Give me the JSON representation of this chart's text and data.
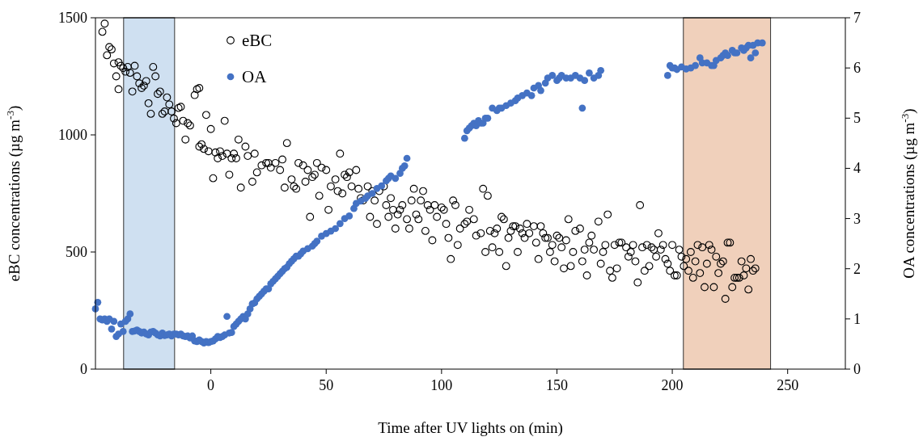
{
  "chart_data": {
    "type": "scatter",
    "xlabel": "Time after UV lights on (min)",
    "ylabel": "eBC concentrations (µg m$^{-3}$)",
    "y2label": "OA concentrations (µg m$^{-3}$)",
    "xlim": [
      -50,
      275
    ],
    "xticks": [
      0,
      50,
      100,
      150,
      200,
      250
    ],
    "ylim": [
      0,
      1500
    ],
    "yticks": [
      0,
      500,
      1000,
      1500
    ],
    "y2lim": [
      0,
      7
    ],
    "y2ticks": [
      0,
      1,
      2,
      3,
      4,
      5,
      6,
      7
    ],
    "marker": "circle",
    "legend": "top left",
    "grid": false,
    "bands": [
      {
        "axis": "x",
        "from": -37.8,
        "to": -15.7,
        "color": "#cfe0f1"
      },
      {
        "axis": "x",
        "from": 204.8,
        "to": 242.6,
        "color": "#f0d0bb"
      }
    ],
    "series": [
      {
        "name": "eBC",
        "color": "#000000",
        "x": [
          -47,
          -46,
          -45,
          -44,
          -43,
          -42,
          -41,
          -40,
          -40,
          -39,
          -38,
          -37,
          -36,
          -35,
          -34,
          -33,
          -32,
          -31,
          -30,
          -29,
          -28,
          -27,
          -26,
          -25,
          -24,
          -23,
          -22,
          -21,
          -20,
          -19,
          -18,
          -17,
          -16,
          -15,
          -14,
          -13,
          -12,
          -11,
          -10,
          -9,
          -7,
          -6,
          -5,
          -5,
          -4,
          -3,
          -2,
          -1,
          0,
          1,
          2,
          3,
          4,
          5,
          6,
          7,
          8,
          9,
          10,
          11,
          12,
          13,
          15,
          16,
          18,
          19,
          20,
          22,
          24,
          25,
          26,
          28,
          30,
          31,
          32,
          33,
          35,
          36,
          37,
          38,
          40,
          41,
          42,
          43,
          44,
          45,
          46,
          47,
          48,
          50,
          51,
          52,
          54,
          55,
          56,
          57,
          58,
          59,
          60,
          61,
          63,
          64,
          65,
          66,
          68,
          69,
          70,
          71,
          72,
          73,
          75,
          76,
          77,
          78,
          79,
          80,
          81,
          82,
          83,
          85,
          86,
          87,
          88,
          89,
          90,
          91,
          92,
          93,
          94,
          95,
          96,
          97,
          98,
          100,
          101,
          102,
          103,
          104,
          105,
          106,
          107,
          108,
          110,
          111,
          112,
          114,
          115,
          117,
          118,
          119,
          120,
          121,
          122,
          123,
          124,
          125,
          126,
          127,
          128,
          129,
          130,
          131,
          132,
          133,
          134,
          135,
          136,
          137,
          138,
          140,
          141,
          142,
          143,
          144,
          145,
          146,
          147,
          148,
          149,
          150,
          151,
          152,
          153,
          154,
          155,
          156,
          157,
          158,
          160,
          161,
          162,
          163,
          164,
          165,
          166,
          168,
          169,
          170,
          171,
          172,
          173,
          174,
          175,
          176,
          177,
          178,
          180,
          181,
          182,
          183,
          184,
          185,
          186,
          187,
          188,
          189,
          190,
          191,
          192,
          193,
          194,
          195,
          196,
          197,
          198,
          199,
          200,
          201,
          202,
          203,
          204,
          205,
          206,
          207,
          208,
          209,
          210,
          211,
          212,
          213,
          214,
          215,
          216,
          217,
          218,
          219,
          220,
          221,
          222,
          223,
          224,
          225,
          226,
          227,
          228,
          229,
          230,
          231,
          232,
          233,
          234,
          235,
          236
        ],
        "values": [
          1440,
          1475,
          1340,
          1375,
          1365,
          1305,
          1250,
          1195,
          1310,
          1295,
          1285,
          1270,
          1290,
          1265,
          1185,
          1295,
          1250,
          1220,
          1200,
          1210,
          1230,
          1135,
          1090,
          1290,
          1250,
          1175,
          1185,
          1090,
          1100,
          1160,
          1130,
          1100,
          1070,
          1050,
          1115,
          1120,
          1060,
          980,
          1050,
          1040,
          1170,
          1195,
          1200,
          950,
          960,
          940,
          1085,
          930,
          1025,
          815,
          925,
          900,
          930,
          910,
          1060,
          920,
          830,
          900,
          920,
          900,
          980,
          775,
          950,
          910,
          800,
          920,
          840,
          870,
          880,
          880,
          860,
          880,
          850,
          895,
          775,
          965,
          810,
          780,
          770,
          880,
          870,
          800,
          850,
          650,
          820,
          830,
          880,
          740,
          860,
          850,
          680,
          780,
          810,
          760,
          920,
          750,
          830,
          820,
          840,
          780,
          850,
          770,
          730,
          720,
          780,
          650,
          760,
          720,
          620,
          760,
          780,
          700,
          650,
          730,
          680,
          600,
          660,
          680,
          700,
          640,
          600,
          720,
          770,
          660,
          640,
          720,
          760,
          590,
          700,
          680,
          550,
          700,
          650,
          690,
          680,
          620,
          560,
          470,
          720,
          700,
          530,
          600,
          620,
          630,
          680,
          640,
          570,
          580,
          770,
          500,
          740,
          590,
          520,
          580,
          600,
          500,
          650,
          640,
          440,
          560,
          590,
          610,
          610,
          500,
          600,
          580,
          560,
          620,
          580,
          610,
          540,
          470,
          610,
          580,
          560,
          560,
          500,
          530,
          460,
          570,
          560,
          520,
          430,
          550,
          640,
          440,
          500,
          590,
          600,
          460,
          510,
          400,
          540,
          570,
          510,
          630,
          450,
          500,
          530,
          660,
          420,
          390,
          530,
          430,
          540,
          540,
          520,
          480,
          500,
          530,
          460,
          370,
          700,
          520,
          420,
          530,
          440,
          520,
          510,
          480,
          580,
          510,
          530,
          470,
          450,
          420,
          530,
          400,
          400,
          510,
          480,
          440,
          470,
          420,
          500,
          390,
          460,
          530,
          410,
          520,
          350,
          450,
          530,
          510,
          350,
          480,
          410,
          450,
          460,
          300,
          540,
          540,
          350,
          390,
          390,
          390,
          460,
          400,
          430,
          340,
          470,
          420,
          430
        ]
      },
      {
        "name": "OA",
        "color": "#4472c4",
        "axis": "y2",
        "x": [
          -50,
          -49,
          -48,
          -47,
          -46,
          -45,
          -44,
          -43,
          -42,
          -41,
          -40,
          -39,
          -38,
          -37,
          -36,
          -35,
          -34,
          -33,
          -32,
          -31,
          -30,
          -29,
          -28,
          -27,
          -26,
          -25,
          -24,
          -23,
          -22,
          -21,
          -20,
          -19,
          -18,
          -17,
          -16,
          -15,
          -14,
          -13,
          -12,
          -11,
          -10,
          -9,
          -8,
          -7,
          -6,
          -5,
          -4,
          -3,
          -2,
          -1,
          0,
          1,
          2,
          3,
          4,
          5,
          6,
          7,
          8,
          9,
          10,
          11,
          12,
          13,
          14,
          15,
          16,
          17,
          18,
          19,
          20,
          21,
          22,
          23,
          24,
          25,
          26,
          27,
          28,
          29,
          30,
          31,
          32,
          33,
          34,
          35,
          36,
          37,
          38,
          39,
          40,
          42,
          44,
          45,
          46,
          48,
          50,
          52,
          54,
          56,
          58,
          60,
          62,
          63,
          65,
          67,
          68,
          70,
          72,
          74,
          76,
          77,
          78,
          80,
          82,
          83,
          84,
          85,
          110,
          111,
          112,
          113,
          114,
          115,
          116,
          117,
          118,
          119,
          120,
          122,
          124,
          125,
          126,
          128,
          130,
          132,
          133,
          135,
          137,
          139,
          140,
          142,
          143,
          145,
          146,
          148,
          150,
          151,
          152,
          154,
          156,
          158,
          160,
          161,
          162,
          164,
          166,
          168,
          169,
          198,
          199,
          200,
          201,
          202,
          204,
          206,
          208,
          210,
          212,
          213,
          215,
          217,
          218,
          219,
          221,
          222,
          223,
          224,
          226,
          227,
          228,
          230,
          231,
          232,
          233,
          234,
          235,
          236,
          237,
          239
        ],
        "values": [
          1.2,
          1.33,
          1.0,
          0.98,
          1.0,
          0.95,
          1.0,
          0.8,
          0.95,
          0.65,
          0.7,
          0.9,
          0.75,
          0.95,
          1.0,
          1.1,
          0.75,
          0.76,
          0.78,
          0.75,
          0.72,
          0.74,
          0.7,
          0.68,
          0.74,
          0.75,
          0.72,
          0.68,
          0.66,
          0.72,
          0.67,
          0.68,
          0.7,
          0.66,
          0.7,
          0.7,
          0.68,
          0.7,
          0.66,
          0.65,
          0.66,
          0.62,
          0.66,
          0.56,
          0.55,
          0.58,
          0.55,
          0.52,
          0.55,
          0.53,
          0.55,
          0.56,
          0.6,
          0.65,
          0.63,
          0.65,
          0.68,
          1.05,
          0.72,
          0.73,
          0.85,
          0.9,
          0.95,
          1.0,
          1.05,
          1.0,
          1.1,
          1.2,
          1.3,
          1.32,
          1.4,
          1.45,
          1.5,
          1.55,
          1.6,
          1.6,
          1.7,
          1.75,
          1.8,
          1.85,
          1.9,
          1.95,
          2.0,
          2.03,
          2.1,
          2.15,
          2.2,
          2.25,
          2.25,
          2.3,
          2.35,
          2.4,
          2.45,
          2.5,
          2.55,
          2.65,
          2.7,
          2.75,
          2.8,
          2.9,
          3.0,
          3.05,
          3.2,
          3.3,
          3.35,
          3.4,
          3.45,
          3.5,
          3.6,
          3.65,
          3.75,
          3.8,
          3.85,
          3.8,
          3.9,
          4.0,
          4.05,
          4.2,
          4.6,
          4.75,
          4.8,
          4.85,
          4.9,
          4.85,
          4.95,
          4.9,
          4.9,
          5.0,
          5.0,
          5.2,
          5.15,
          5.2,
          5.2,
          5.25,
          5.3,
          5.35,
          5.4,
          5.45,
          5.5,
          5.45,
          5.6,
          5.65,
          5.55,
          5.7,
          5.8,
          5.85,
          5.75,
          5.8,
          5.85,
          5.8,
          5.8,
          5.85,
          5.8,
          5.2,
          5.75,
          5.9,
          5.8,
          5.85,
          5.95,
          5.85,
          6.05,
          6.0,
          6.0,
          5.97,
          6.02,
          5.98,
          6.0,
          6.05,
          6.2,
          6.1,
          6.1,
          6.05,
          6.05,
          6.15,
          6.2,
          6.25,
          6.3,
          6.25,
          6.35,
          6.3,
          6.3,
          6.4,
          6.35,
          6.4,
          6.45,
          6.2,
          6.45,
          6.3,
          6.5,
          6.5
        ]
      }
    ]
  }
}
